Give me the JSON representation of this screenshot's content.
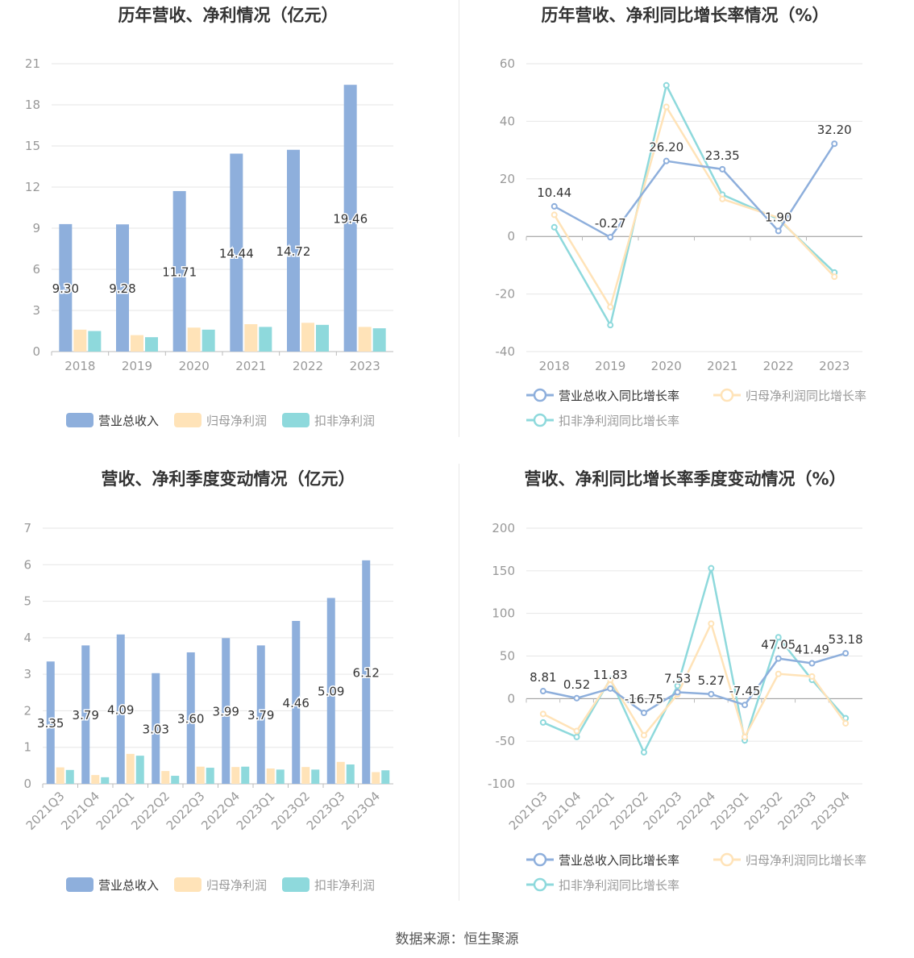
{
  "source": "数据来源：恒生聚源",
  "colors": {
    "revenue": "#8eafdc",
    "net_profit": "#ffe3b8",
    "deducted": "#8ed9dc",
    "growth_rev": "#8eafdc",
    "growth_np": "#ffe3b8",
    "growth_ded": "#8ed9dc"
  },
  "chart_data": [
    {
      "type": "bar",
      "title": "历年营收、净利情况（亿元）",
      "categories": [
        "2018",
        "2019",
        "2020",
        "2021",
        "2022",
        "2023"
      ],
      "ylim": [
        0,
        21
      ],
      "yticks": [
        "0",
        "3",
        "6",
        "9",
        "12",
        "15",
        "18",
        "21"
      ],
      "grid": true,
      "legend_position": "bottom",
      "series": [
        {
          "name": "营业总收入",
          "values": [
            9.3,
            9.28,
            11.71,
            14.44,
            14.72,
            19.46
          ],
          "labels": [
            "9.30",
            "9.28",
            "11.71",
            "14.44",
            "14.72",
            "19.46"
          ]
        },
        {
          "name": "归母净利润",
          "values": [
            1.6,
            1.2,
            1.75,
            2.0,
            2.1,
            1.8
          ]
        },
        {
          "name": "扣非净利润",
          "values": [
            1.5,
            1.05,
            1.6,
            1.8,
            1.95,
            1.7
          ]
        }
      ]
    },
    {
      "type": "line",
      "title": "历年营收、净利同比增长率情况（%）",
      "categories": [
        "2018",
        "2019",
        "2020",
        "2021",
        "2022",
        "2023"
      ],
      "ylim": [
        -40,
        60
      ],
      "yticks": [
        "-40",
        "-20",
        "0",
        "20",
        "40",
        "60"
      ],
      "grid": true,
      "legend_position": "bottom",
      "series": [
        {
          "name": "营业总收入同比增长率",
          "values": [
            10.44,
            -0.27,
            26.2,
            23.35,
            1.9,
            32.2
          ],
          "labels": [
            "10.44",
            "-0.27",
            "26.20",
            "23.35",
            "1.90",
            "32.20"
          ]
        },
        {
          "name": "归母净利润同比增长率",
          "values": [
            7.5,
            -24.5,
            45.0,
            13.0,
            6.5,
            -14.0
          ]
        },
        {
          "name": "扣非净利润同比增长率",
          "values": [
            3.2,
            -30.8,
            52.5,
            14.5,
            6.0,
            -12.5
          ]
        }
      ]
    },
    {
      "type": "bar",
      "title": "营收、净利季度变动情况（亿元）",
      "categories": [
        "2021Q3",
        "2021Q4",
        "2022Q1",
        "2022Q2",
        "2022Q3",
        "2022Q4",
        "2023Q1",
        "2023Q2",
        "2023Q3",
        "2023Q4"
      ],
      "ylim": [
        0,
        7
      ],
      "yticks": [
        "0",
        "1",
        "2",
        "3",
        "4",
        "5",
        "6",
        "7"
      ],
      "grid": true,
      "legend_position": "bottom",
      "series": [
        {
          "name": "营业总收入",
          "values": [
            3.35,
            3.79,
            4.09,
            3.03,
            3.6,
            3.99,
            3.79,
            4.46,
            5.09,
            6.12
          ],
          "labels": [
            "3.35",
            "3.79",
            "4.09",
            "3.03",
            "3.60",
            "3.99",
            "3.79",
            "4.46",
            "5.09",
            "6.12"
          ]
        },
        {
          "name": "归母净利润",
          "values": [
            0.45,
            0.24,
            0.82,
            0.35,
            0.47,
            0.46,
            0.42,
            0.46,
            0.6,
            0.32
          ]
        },
        {
          "name": "扣非净利润",
          "values": [
            0.38,
            0.18,
            0.77,
            0.22,
            0.44,
            0.47,
            0.39,
            0.39,
            0.53,
            0.37
          ]
        }
      ]
    },
    {
      "type": "line",
      "title": "营收、净利同比增长率季度变动情况（%）",
      "categories": [
        "2021Q3",
        "2021Q4",
        "2022Q1",
        "2022Q2",
        "2022Q3",
        "2022Q4",
        "2023Q1",
        "2023Q2",
        "2023Q3",
        "2023Q4"
      ],
      "ylim": [
        -100,
        200
      ],
      "yticks": [
        "-100",
        "-50",
        "0",
        "50",
        "100",
        "150",
        "200"
      ],
      "grid": true,
      "legend_position": "bottom",
      "series": [
        {
          "name": "营业总收入同比增长率",
          "values": [
            8.81,
            0.52,
            11.83,
            -16.75,
            7.53,
            5.27,
            -7.45,
            47.05,
            41.49,
            53.18
          ],
          "labels": [
            "8.81",
            "0.52",
            "11.83",
            "-16.75",
            "7.53",
            "5.27",
            "-7.45",
            "47.05",
            "41.49",
            "53.18"
          ]
        },
        {
          "name": "归母净利润同比增长率",
          "values": [
            -18,
            -38,
            22,
            -43,
            5,
            88,
            -45,
            29,
            26,
            -29
          ]
        },
        {
          "name": "扣非净利润同比增长率",
          "values": [
            -28,
            -45,
            23,
            -63,
            15,
            153,
            -49,
            72,
            22,
            -23
          ]
        }
      ]
    }
  ]
}
